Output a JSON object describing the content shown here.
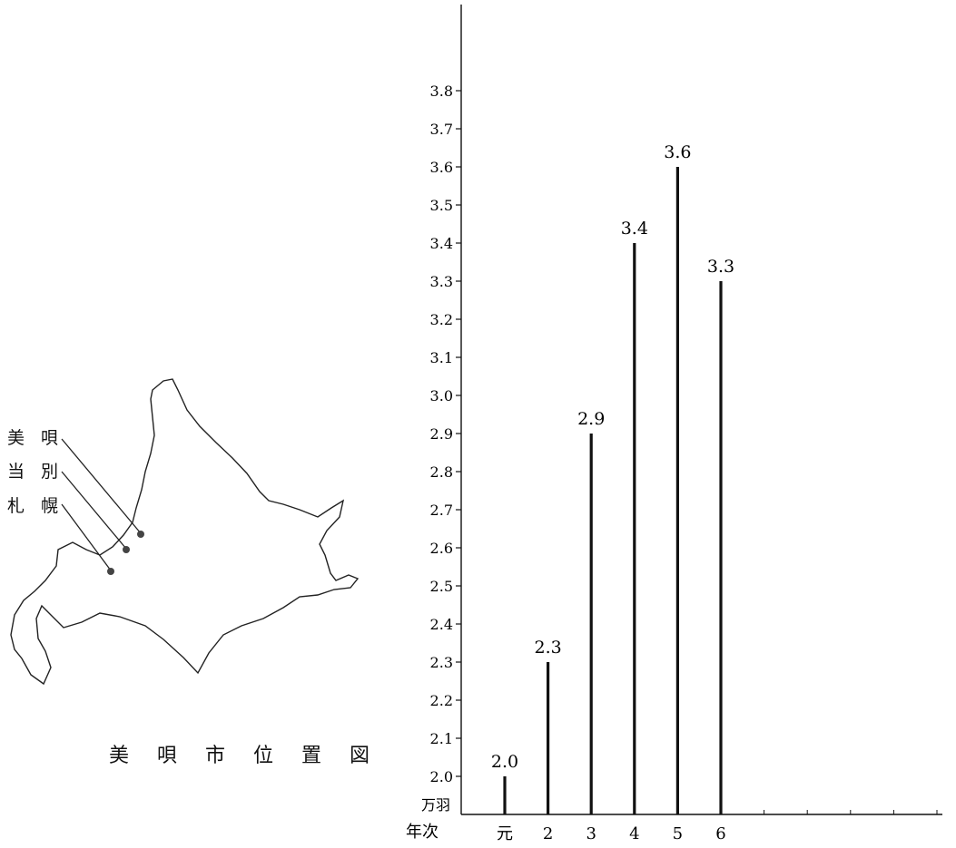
{
  "map": {
    "caption": "美 唄 市 位 置 図",
    "places": [
      {
        "name": "美 唄"
      },
      {
        "name": "当 別"
      },
      {
        "name": "札 幌"
      }
    ]
  },
  "chart_data": {
    "type": "bar",
    "y_unit_label": "万羽",
    "x_axis_label": "年次",
    "categories": [
      "元",
      "2",
      "3",
      "4",
      "5",
      "6"
    ],
    "values": [
      2.0,
      2.3,
      2.9,
      3.4,
      3.6,
      3.3
    ],
    "value_labels": [
      "2.0",
      "2.3",
      "2.9",
      "3.4",
      "3.6",
      "3.3"
    ],
    "extra_x_ticks": 5,
    "ylim": [
      1.9,
      3.8
    ],
    "yticks": [
      "2.0",
      "2.1",
      "2.2",
      "2.3",
      "2.4",
      "2.5",
      "2.6",
      "2.7",
      "2.8",
      "2.9",
      "3.0",
      "3.1",
      "3.2",
      "3.3",
      "3.4",
      "3.5",
      "3.6",
      "3.7",
      "3.8"
    ],
    "bar_color": "#111111"
  }
}
